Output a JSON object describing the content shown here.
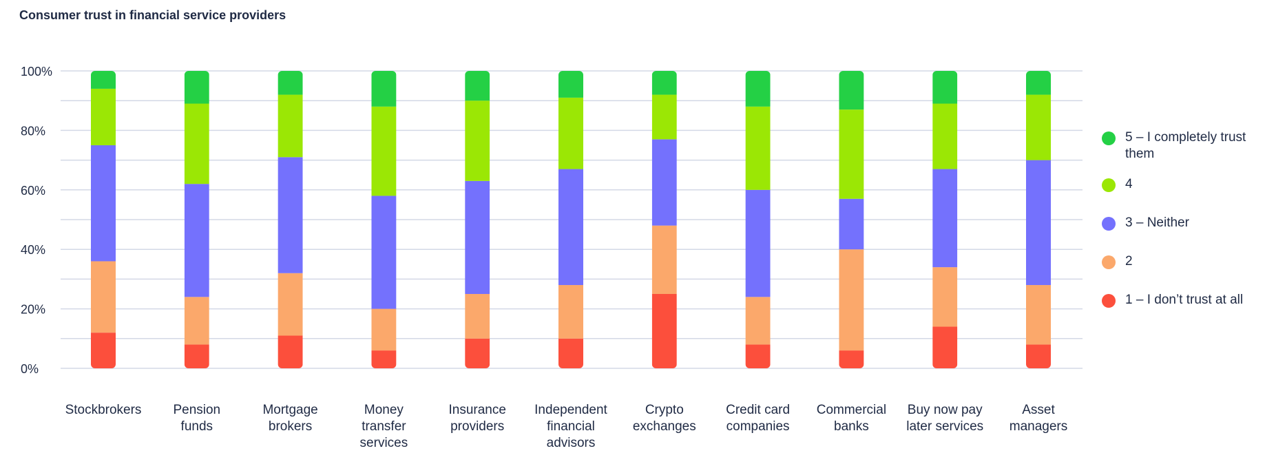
{
  "title": "Consumer trust in financial service providers",
  "chart_data": {
    "type": "bar",
    "stacked": true,
    "title": "Consumer trust in financial service providers",
    "xlabel": "",
    "ylabel": "",
    "ylim": [
      0,
      100
    ],
    "yticks": [
      "0%",
      "20%",
      "40%",
      "60%",
      "80%",
      "100%"
    ],
    "grid": true,
    "legend_position": "right",
    "categories": [
      [
        "Stockbrokers"
      ],
      [
        "Pension",
        "funds"
      ],
      [
        "Mortgage",
        "brokers"
      ],
      [
        "Money",
        "transfer",
        "services"
      ],
      [
        "Insurance",
        "providers"
      ],
      [
        "Independent",
        "financial",
        "advisors"
      ],
      [
        "Crypto",
        "exchanges"
      ],
      [
        "Credit card",
        "companies"
      ],
      [
        "Commercial",
        "banks"
      ],
      [
        "Buy now pay",
        "later services"
      ],
      [
        "Asset",
        "managers"
      ]
    ],
    "series": [
      {
        "name": "1 – I don’t trust at all",
        "color": "#fc4f3c",
        "values": [
          12,
          8,
          11,
          6,
          10,
          10,
          25,
          8,
          6,
          14,
          8
        ]
      },
      {
        "name": "2",
        "color": "#fba86b",
        "values": [
          24,
          16,
          21,
          14,
          15,
          18,
          23,
          16,
          34,
          20,
          20
        ]
      },
      {
        "name": "3 – Neither",
        "color": "#7471fd",
        "values": [
          39,
          38,
          39,
          38,
          38,
          39,
          29,
          36,
          17,
          33,
          42
        ]
      },
      {
        "name": "4",
        "color": "#9be705",
        "values": [
          19,
          27,
          21,
          30,
          27,
          24,
          15,
          28,
          30,
          22,
          22
        ]
      },
      {
        "name": "5 – I completely trust them",
        "color": "#24d045",
        "values": [
          6,
          11,
          8,
          12,
          10,
          9,
          8,
          12,
          13,
          11,
          8
        ]
      }
    ]
  },
  "legend": [
    {
      "label": "5 – I completely trust them",
      "color": "#24d045",
      "icon": "circle-icon"
    },
    {
      "label": "4",
      "color": "#9be705",
      "icon": "circle-icon"
    },
    {
      "label": "3 – Neither",
      "color": "#7471fd",
      "icon": "circle-icon"
    },
    {
      "label": "2",
      "color": "#fba86b",
      "icon": "circle-icon"
    },
    {
      "label": "1 – I don’t trust at all",
      "color": "#fc4f3c",
      "icon": "circle-icon"
    }
  ]
}
